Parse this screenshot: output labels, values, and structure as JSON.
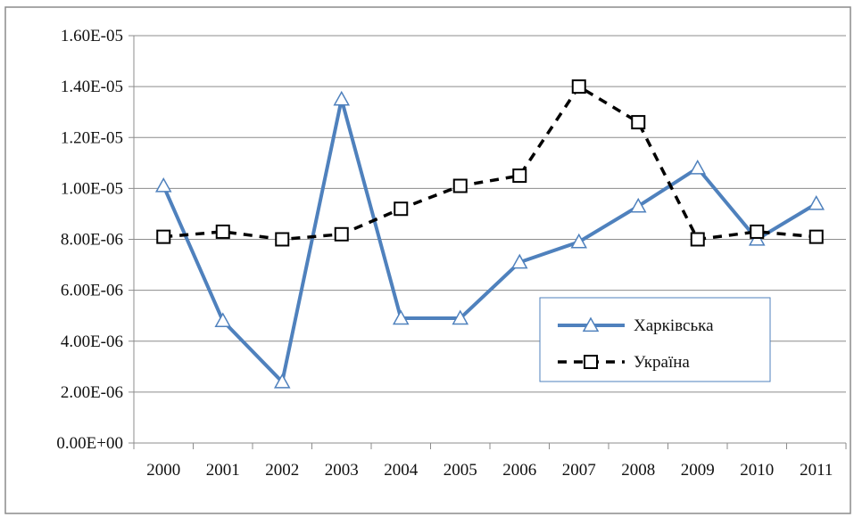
{
  "chart_data": {
    "type": "line",
    "title": "",
    "xlabel": "",
    "ylabel": "",
    "categories": [
      "2000",
      "2001",
      "2002",
      "2003",
      "2004",
      "2005",
      "2006",
      "2007",
      "2008",
      "2009",
      "2010",
      "2011"
    ],
    "ylim": [
      0,
      1.6e-05
    ],
    "yticks": [
      {
        "value": 0,
        "label": "0.00E+00"
      },
      {
        "value": 2e-06,
        "label": "2.00E-06"
      },
      {
        "value": 4e-06,
        "label": "4.00E-06"
      },
      {
        "value": 6e-06,
        "label": "6.00E-06"
      },
      {
        "value": 8e-06,
        "label": "8.00E-06"
      },
      {
        "value": 1e-05,
        "label": "1.00E-05"
      },
      {
        "value": 1.2e-05,
        "label": "1.20E-05"
      },
      {
        "value": 1.4e-05,
        "label": "1.40E-05"
      },
      {
        "value": 1.6e-05,
        "label": "1.60E-05"
      }
    ],
    "grid": true,
    "legend_position": "bottom-right",
    "series": [
      {
        "name": "Харківська",
        "color": "#4f81bd",
        "line_style": "solid",
        "marker": "triangle",
        "values": [
          1.01e-05,
          4.8e-06,
          2.4e-06,
          1.35e-05,
          4.9e-06,
          4.9e-06,
          7.1e-06,
          7.9e-06,
          9.3e-06,
          1.08e-05,
          8e-06,
          9.4e-06
        ]
      },
      {
        "name": "Україна",
        "color": "#000000",
        "line_style": "dashed",
        "marker": "square",
        "values": [
          8.1e-06,
          8.3e-06,
          8e-06,
          8.2e-06,
          9.2e-06,
          1.01e-05,
          1.05e-05,
          1.4e-05,
          1.26e-05,
          8e-06,
          8.3e-06,
          8.1e-06
        ]
      }
    ]
  }
}
